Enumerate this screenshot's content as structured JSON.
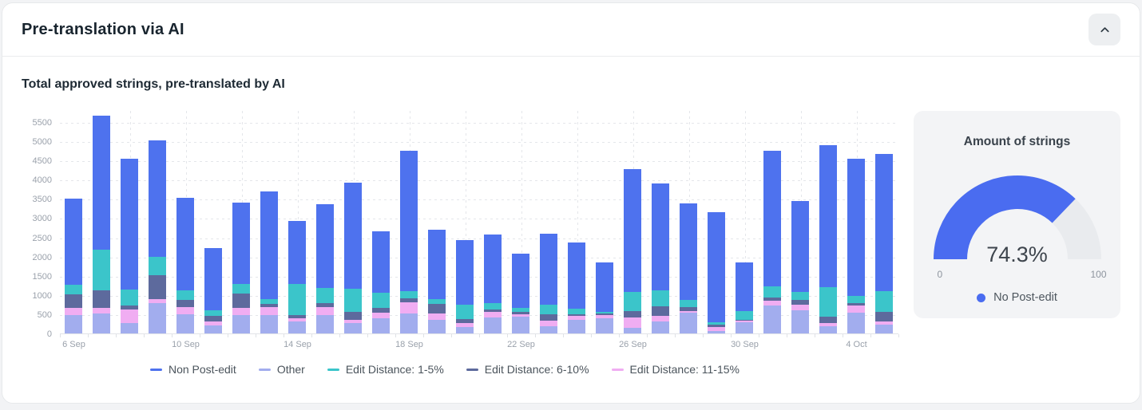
{
  "header": {
    "title": "Pre-translation via AI"
  },
  "subtitle": "Total approved strings, pre-translated by AI",
  "chart_data": {
    "type": "bar",
    "stacked": true,
    "title": "Total approved strings, pre-translated by AI",
    "grid": "dashed",
    "legend_position": "bottom",
    "y_ticks": [
      0,
      500,
      1000,
      1500,
      2000,
      2500,
      3000,
      3500,
      4000,
      4500,
      5000,
      5500
    ],
    "ylim": [
      0,
      5810
    ],
    "x_axis_labels": [
      "6 Sep",
      "10 Sep",
      "14 Sep",
      "18 Sep",
      "22 Sep",
      "26 Sep",
      "30 Sep",
      "4 Oct"
    ],
    "label_interval": 4,
    "categories": [
      "6 Sep",
      "7 Sep",
      "8 Sep",
      "9 Sep",
      "10 Sep",
      "11 Sep",
      "12 Sep",
      "13 Sep",
      "14 Sep",
      "15 Sep",
      "16 Sep",
      "17 Sep",
      "18 Sep",
      "19 Sep",
      "20 Sep",
      "21 Sep",
      "22 Sep",
      "23 Sep",
      "24 Sep",
      "25 Sep",
      "26 Sep",
      "27 Sep",
      "28 Sep",
      "29 Sep",
      "30 Sep",
      "1 Oct",
      "2 Oct",
      "3 Oct",
      "4 Oct",
      "5 Oct"
    ],
    "series": [
      {
        "name": "Other",
        "color": "#a2adee",
        "values": [
          480,
          510,
          260,
          790,
          490,
          200,
          480,
          480,
          310,
          480,
          270,
          390,
          510,
          360,
          170,
          410,
          440,
          190,
          350,
          390,
          150,
          310,
          545,
          70,
          300,
          720,
          600,
          190,
          545,
          235
        ]
      },
      {
        "name": "Edit Distance: 11-15%",
        "color": "#f0adf2",
        "values": [
          180,
          160,
          360,
          110,
          190,
          110,
          180,
          210,
          80,
          210,
          75,
          140,
          300,
          160,
          100,
          150,
          60,
          140,
          100,
          90,
          260,
          150,
          40,
          100,
          30,
          140,
          150,
          70,
          185,
          70
        ]
      },
      {
        "name": "Edit Distance: 6-10%",
        "color": "#5d6a9d",
        "values": [
          360,
          460,
          100,
          620,
          200,
          140,
          370,
          70,
          90,
          100,
          220,
          140,
          100,
          240,
          110,
          60,
          70,
          160,
          55,
          35,
          180,
          255,
          100,
          55,
          15,
          65,
          125,
          175,
          55,
          265
        ]
      },
      {
        "name": "Edit Distance: 1-5%",
        "color": "#3bc5ca",
        "values": [
          240,
          1040,
          430,
          480,
          240,
          150,
          250,
          140,
          800,
          390,
          590,
          390,
          190,
          140,
          370,
          170,
          100,
          260,
          140,
          50,
          490,
          415,
          190,
          70,
          235,
          300,
          210,
          775,
          195,
          535
        ]
      },
      {
        "name": "Non Post-edit",
        "color": "#4e72ee",
        "values": [
          2240,
          3490,
          3400,
          3030,
          2410,
          1630,
          2120,
          2800,
          1640,
          2190,
          2775,
          1590,
          3650,
          1800,
          1670,
          1790,
          1410,
          1840,
          1725,
          1285,
          3200,
          2770,
          2505,
          2865,
          1270,
          3525,
          2355,
          3690,
          3570,
          3565
        ]
      }
    ],
    "legend_order": [
      "Non Post-edit",
      "Other",
      "Edit Distance: 1-5%",
      "Edit Distance: 6-10%",
      "Edit Distance: 11-15%"
    ]
  },
  "gauge": {
    "title": "Amount of strings",
    "value_percent": 74.3,
    "value_label": "74.3%",
    "min_label": "0",
    "max_label": "100",
    "legend_label": "No Post-edit",
    "color": "#4a6cf0",
    "track_color": "#e9ebee"
  }
}
